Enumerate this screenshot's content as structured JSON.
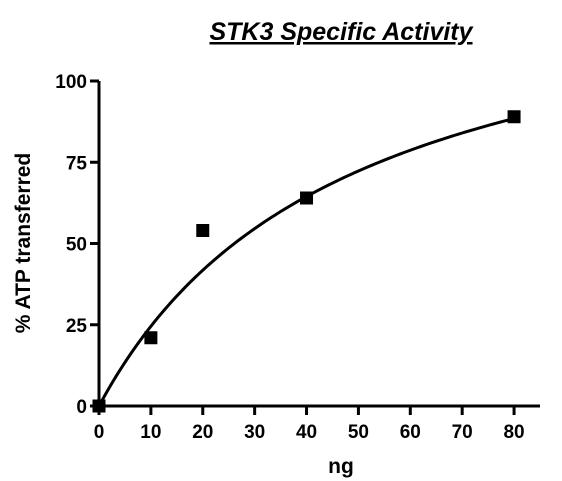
{
  "chart_data": {
    "type": "scatter",
    "title": "STK3 Specific Activity",
    "xlabel": "ng",
    "ylabel": "% ATP transferred",
    "xlim": [
      0,
      85
    ],
    "ylim": [
      0,
      100
    ],
    "x_ticks": [
      0,
      10,
      20,
      30,
      40,
      50,
      60,
      70,
      80
    ],
    "y_ticks": [
      0,
      25,
      50,
      75,
      100
    ],
    "grid": false,
    "series": [
      {
        "marker": "square",
        "color": "#000000",
        "points": [
          {
            "x": 0,
            "y": 0
          },
          {
            "x": 10,
            "y": 21
          },
          {
            "x": 20,
            "y": 54
          },
          {
            "x": 40,
            "y": 64
          },
          {
            "x": 80,
            "y": 89
          }
        ]
      }
    ],
    "fit_curve": {
      "model": "hyperbola",
      "vmax": 141,
      "k": 47.5,
      "x_range": [
        0,
        80
      ],
      "color": "#000000"
    }
  }
}
